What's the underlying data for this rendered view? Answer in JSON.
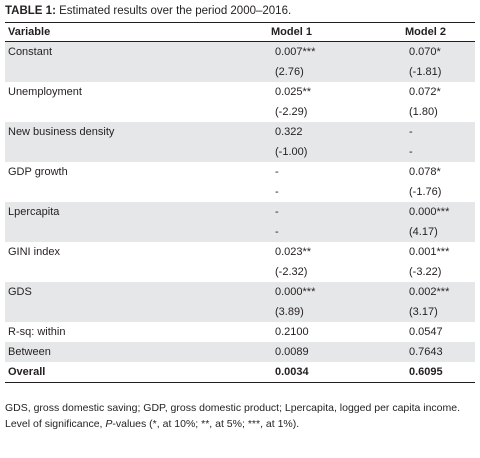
{
  "caption": {
    "label": "TABLE 1:",
    "text": "Estimated results over the period 2000–2016."
  },
  "headers": [
    "Variable",
    "Model 1",
    "Model 2"
  ],
  "rows": [
    {
      "variable": "Constant",
      "m1": "0.007***",
      "m2": "0.070*",
      "m1_t": "(2.76)",
      "m2_t": "(-1.81)"
    },
    {
      "variable": "Unemployment",
      "m1": "0.025**",
      "m2": "0.072*",
      "m1_t": "(-2.29)",
      "m2_t": "(1.80)"
    },
    {
      "variable": "New business density",
      "m1": "0.322",
      "m2": "-",
      "m1_t": "(-1.00)",
      "m2_t": "-"
    },
    {
      "variable": "GDP growth",
      "m1": "-",
      "m2": "0.078*",
      "m1_t": "-",
      "m2_t": "(-1.76)"
    },
    {
      "variable": "Lpercapita",
      "m1": "-",
      "m2": "0.000***",
      "m1_t": "-",
      "m2_t": "(4.17)"
    },
    {
      "variable": "GINI index",
      "m1": "0.023**",
      "m2": "0.001***",
      "m1_t": "(-2.32)",
      "m2_t": "(-3.22)"
    },
    {
      "variable": "GDS",
      "m1": "0.000***",
      "m2": "0.002***",
      "m1_t": "(3.89)",
      "m2_t": "(3.17)"
    }
  ],
  "stats": [
    {
      "variable": "R-sq: within",
      "m1": "0.2100",
      "m2": "0.0547"
    },
    {
      "variable": "Between",
      "m1": "0.0089",
      "m2": "0.7643"
    },
    {
      "variable": "Overall",
      "m1": "0.0034",
      "m2": "0.6095"
    }
  ],
  "notes": {
    "abbreviations": "GDS, gross domestic saving; GDP, gross domestic product; Lpercapita, logged per capita income.",
    "significance_prefix": "Level of significance, ",
    "significance_p": "P",
    "significance_suffix": "-values (*, at 10%; **, at 5%; ***, at 1%)."
  }
}
